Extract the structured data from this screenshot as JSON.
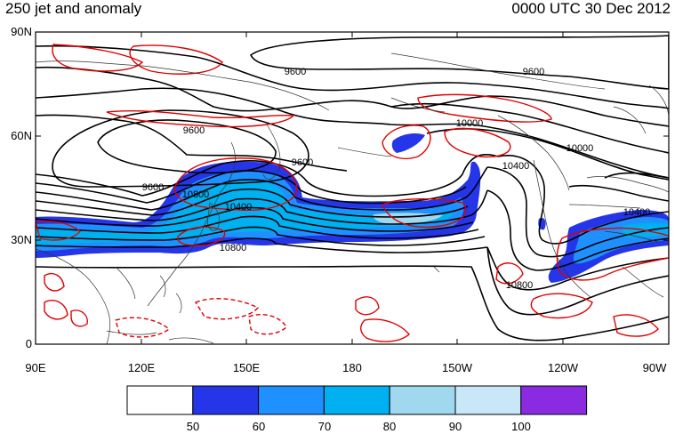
{
  "title_left": "250 jet and anomaly",
  "title_right": "0000 UTC 30 Dec 2012",
  "map": {
    "lat_labels": [
      "90N",
      "60N",
      "30N",
      "0"
    ],
    "lon_labels": [
      "90E",
      "120E",
      "150E",
      "180",
      "150W",
      "120W",
      "90W"
    ],
    "contour_labels": [
      "9600",
      "9600",
      "9600",
      "9600",
      "9600",
      "10000",
      "10000",
      "10400",
      "10400",
      "10400",
      "10800",
      "10800",
      "10800"
    ]
  },
  "colorbar": {
    "colors": [
      "#ffffff",
      "#2436e8",
      "#1e90ff",
      "#00b0f0",
      "#a0d8f0",
      "#c8e8f8",
      "#8a2be2"
    ],
    "labels": [
      "50",
      "60",
      "70",
      "80",
      "90",
      "100"
    ]
  },
  "colors": {
    "contour": "#000000",
    "anomaly": "#e00000",
    "coast": "#333333"
  }
}
